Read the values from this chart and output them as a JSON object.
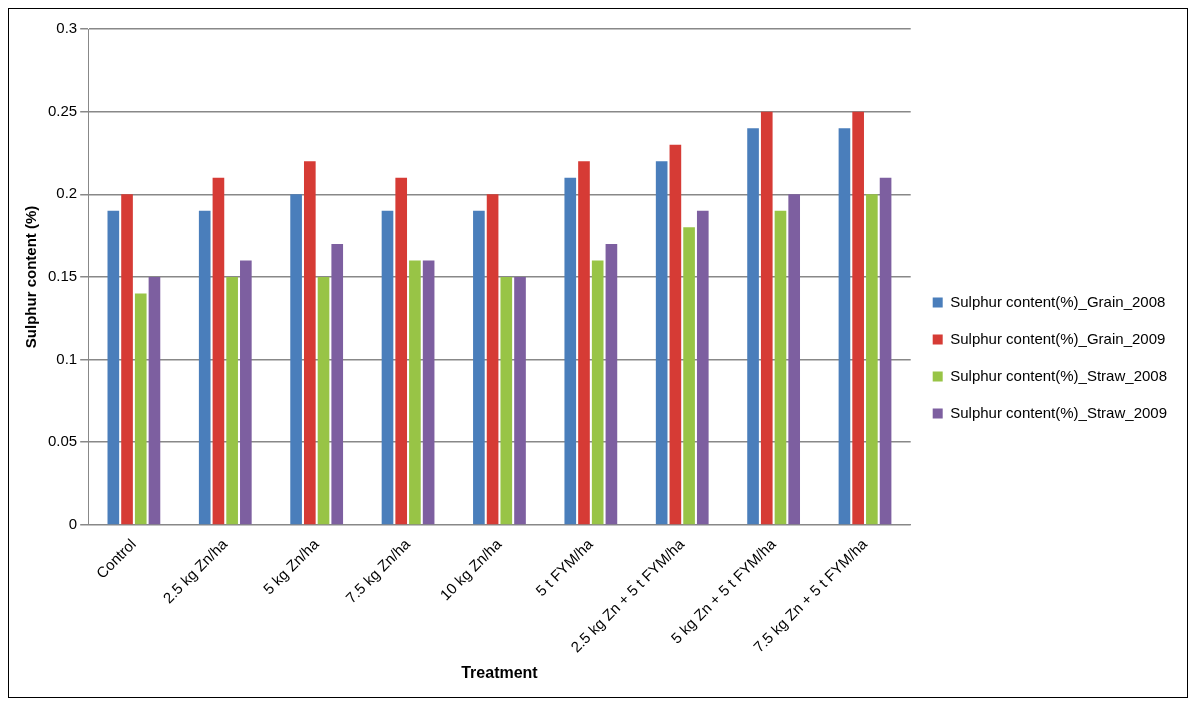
{
  "chart_data": {
    "type": "bar",
    "xlabel": "Treatment",
    "ylabel": "Sulphur content (%)",
    "categories": [
      "Control",
      "2.5 kg Zn/ha",
      "5 kg Zn/ha",
      "7.5 kg Zn/ha",
      "10 kg Zn/ha",
      "5 t FYM/ha",
      "2.5 kg Zn + 5 t FYM/ha",
      "5 kg Zn + 5 t FYM/ha",
      "7.5 kg Zn + 5 t FYM/ha"
    ],
    "series": [
      {
        "name": "Sulphur content(%)_Grain_2008",
        "color": "#4a7ebb",
        "values": [
          0.19,
          0.19,
          0.2,
          0.19,
          0.19,
          0.21,
          0.22,
          0.24,
          0.24
        ]
      },
      {
        "name": "Sulphur content(%)_Grain_2009",
        "color": "#d63b35",
        "values": [
          0.2,
          0.21,
          0.22,
          0.21,
          0.2,
          0.22,
          0.23,
          0.25,
          0.25
        ]
      },
      {
        "name": "Sulphur content(%)_Straw_2008",
        "color": "#98c446",
        "values": [
          0.14,
          0.15,
          0.15,
          0.16,
          0.15,
          0.16,
          0.18,
          0.19,
          0.2
        ]
      },
      {
        "name": "Sulphur content(%)_Straw_2009",
        "color": "#7d5fa0",
        "values": [
          0.15,
          0.16,
          0.17,
          0.16,
          0.15,
          0.17,
          0.19,
          0.2,
          0.21
        ]
      }
    ],
    "ylim": [
      0,
      0.3
    ],
    "yticks": [
      0,
      0.05,
      0.1,
      0.15,
      0.2,
      0.25,
      0.3
    ],
    "grid": "y",
    "legend": "right"
  }
}
